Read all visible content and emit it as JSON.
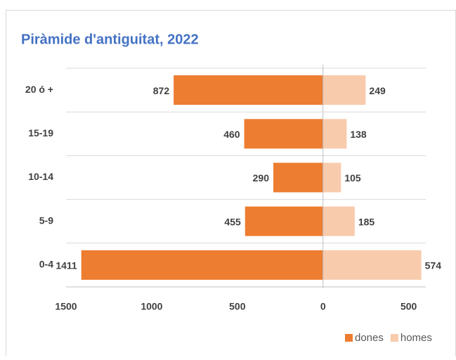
{
  "chart_data": {
    "type": "bar",
    "orientation": "horizontal",
    "title": "Piràmide d'antiguitat, 2022",
    "categories": [
      "20 ó +",
      "15-19",
      "10-14",
      "5-9",
      "0-4"
    ],
    "series": [
      {
        "name": "dones",
        "color": "#ed7d31",
        "values": [
          -872,
          -460,
          -290,
          -455,
          -1411
        ],
        "value_labels": [
          "872",
          "460",
          "290",
          "455",
          "1411"
        ]
      },
      {
        "name": "homes",
        "color": "#f8cbad",
        "values": [
          249,
          138,
          105,
          185,
          574
        ]
      }
    ],
    "xlim": [
      -1500,
      600
    ],
    "xticks": [
      {
        "value": -1500,
        "label": "1500"
      },
      {
        "value": -1000,
        "label": "1000"
      },
      {
        "value": -500,
        "label": "500"
      },
      0,
      500
    ],
    "grid": true,
    "legend": "bottom-right"
  }
}
